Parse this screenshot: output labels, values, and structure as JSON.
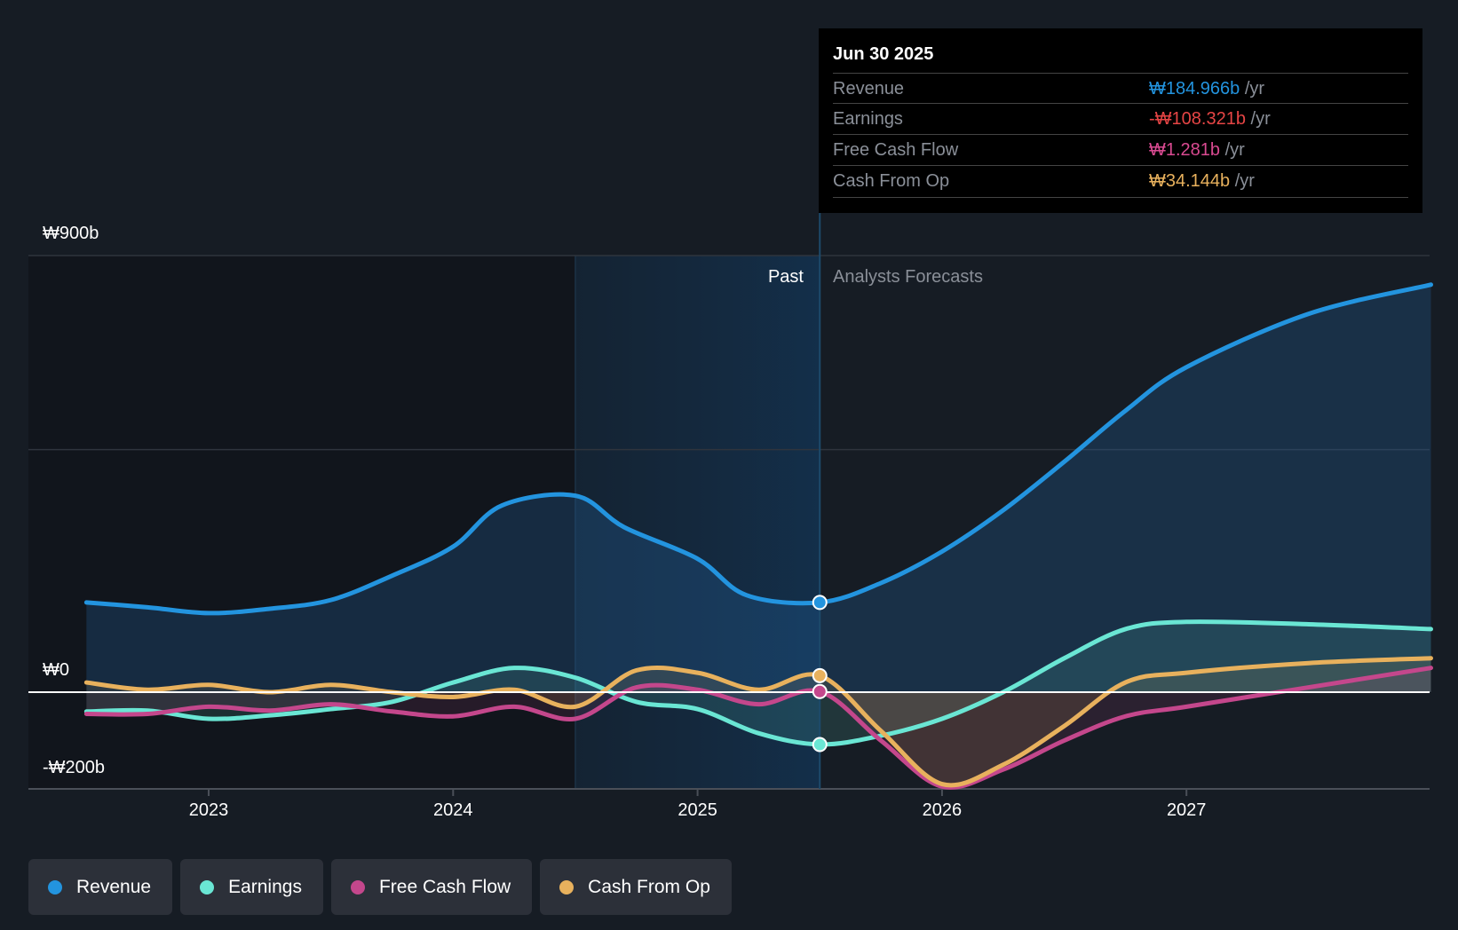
{
  "tooltip": {
    "date": "Jun 30 2025",
    "rows": [
      {
        "label": "Revenue",
        "value": "₩184.966b",
        "unit": "/yr",
        "color": "#2394df"
      },
      {
        "label": "Earnings",
        "value": "-₩108.321b",
        "unit": "/yr",
        "color": "#e64545"
      },
      {
        "label": "Free Cash Flow",
        "value": "₩1.281b",
        "unit": "/yr",
        "color": "#d94a91"
      },
      {
        "label": "Cash From Op",
        "value": "₩34.144b",
        "unit": "/yr",
        "color": "#e8b15d"
      }
    ]
  },
  "segments": {
    "past": "Past",
    "forecast": "Analysts Forecasts"
  },
  "legend": [
    {
      "label": "Revenue",
      "color": "#2394df"
    },
    {
      "label": "Earnings",
      "color": "#6ae6d4"
    },
    {
      "label": "Free Cash Flow",
      "color": "#c4478c"
    },
    {
      "label": "Cash From Op",
      "color": "#e8b15d"
    }
  ],
  "chart_data": {
    "type": "line",
    "title": "",
    "xlabel": "",
    "ylabel": "",
    "ylim": [
      -200,
      900
    ],
    "y_unit": "₩ billions",
    "y_tick_labels": [
      "₩900b",
      "₩0",
      "-₩200b"
    ],
    "y_ticks": [
      900,
      500,
      0,
      -200
    ],
    "x_tick_labels": [
      "2023",
      "2024",
      "2025",
      "2026",
      "2027"
    ],
    "x_ticks": [
      2023,
      2024,
      2025,
      2026,
      2027
    ],
    "xlim": [
      2022.5,
      2028.0
    ],
    "past_forecast_split": 2025.5,
    "highlight_start": 2024.5,
    "series": [
      {
        "name": "Revenue",
        "color": "#2394df",
        "x": [
          2022.5,
          2022.75,
          2023.0,
          2023.25,
          2023.5,
          2023.75,
          2024.0,
          2024.2,
          2024.5,
          2024.7,
          2025.0,
          2025.2,
          2025.5,
          2025.75,
          2026.0,
          2026.25,
          2026.5,
          2026.75,
          2027.0,
          2027.5,
          2028.0
        ],
        "values": [
          185,
          175,
          163,
          172,
          190,
          240,
          300,
          385,
          405,
          340,
          275,
          200,
          185,
          225,
          290,
          375,
          475,
          580,
          670,
          780,
          840
        ]
      },
      {
        "name": "Earnings",
        "color": "#6ae6d4",
        "x": [
          2022.5,
          2022.75,
          2023.0,
          2023.25,
          2023.5,
          2023.75,
          2024.0,
          2024.25,
          2024.5,
          2024.75,
          2025.0,
          2025.25,
          2025.5,
          2025.75,
          2026.0,
          2026.25,
          2026.5,
          2026.75,
          2027.0,
          2027.5,
          2028.0
        ],
        "values": [
          -40,
          -38,
          -55,
          -48,
          -35,
          -20,
          20,
          50,
          30,
          -20,
          -35,
          -85,
          -108,
          -90,
          -55,
          0,
          70,
          130,
          145,
          140,
          130
        ]
      },
      {
        "name": "Free Cash Flow",
        "color": "#c4478c",
        "x": [
          2022.5,
          2022.75,
          2023.0,
          2023.25,
          2023.5,
          2023.75,
          2024.0,
          2024.25,
          2024.5,
          2024.75,
          2025.0,
          2025.25,
          2025.5,
          2025.75,
          2026.0,
          2026.25,
          2026.5,
          2026.75,
          2027.0,
          2027.5,
          2028.0
        ],
        "values": [
          -45,
          -45,
          -30,
          -38,
          -25,
          -40,
          -50,
          -30,
          -55,
          10,
          5,
          -25,
          1.3,
          -100,
          -195,
          -160,
          -100,
          -50,
          -30,
          10,
          50
        ]
      },
      {
        "name": "Cash From Op",
        "color": "#e8b15d",
        "x": [
          2022.5,
          2022.75,
          2023.0,
          2023.25,
          2023.5,
          2023.75,
          2024.0,
          2024.25,
          2024.5,
          2024.75,
          2025.0,
          2025.25,
          2025.5,
          2025.75,
          2026.0,
          2026.25,
          2026.5,
          2026.75,
          2027.0,
          2027.5,
          2028.0
        ],
        "values": [
          20,
          5,
          15,
          0,
          15,
          0,
          -10,
          5,
          -30,
          45,
          40,
          5,
          34,
          -80,
          -190,
          -150,
          -70,
          20,
          40,
          60,
          70
        ]
      }
    ],
    "hover_point": {
      "x": 2025.5,
      "Revenue": 184.966,
      "Earnings": -108.321,
      "Free Cash Flow": 1.281,
      "Cash From Op": 34.144
    },
    "grid": true,
    "legend_position": "bottom-left"
  }
}
